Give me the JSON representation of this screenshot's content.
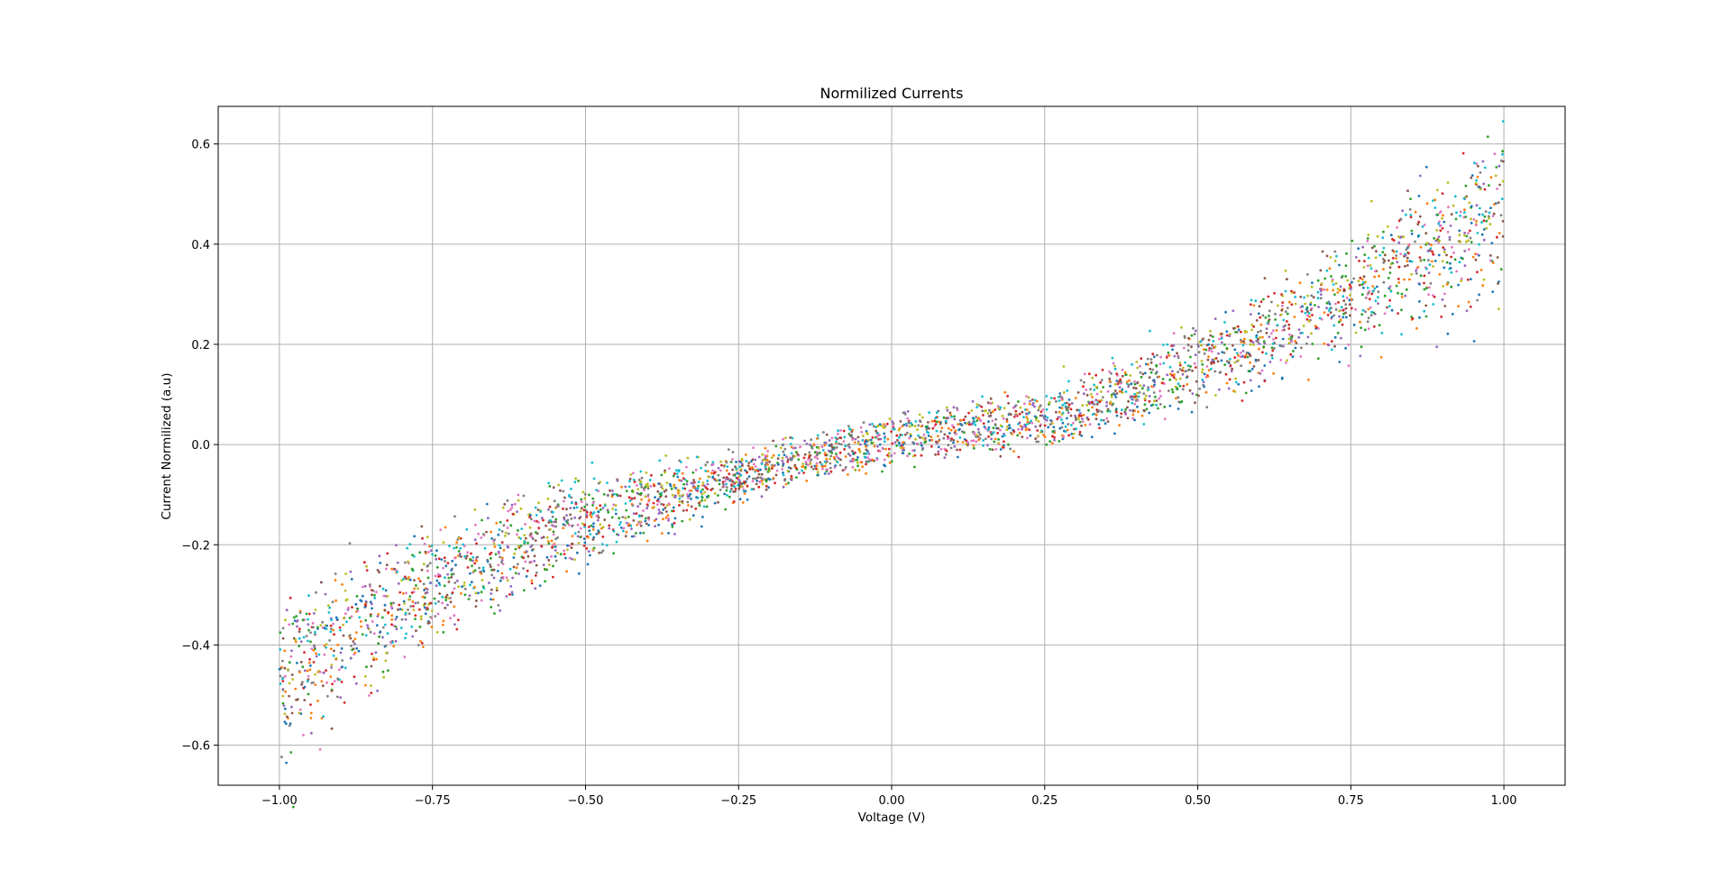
{
  "chart_data": {
    "type": "scatter",
    "title": "Normilized Currents",
    "xlabel": "Voltage (V)",
    "ylabel": "Current Normilized (a.u)",
    "xlim": [
      -1.1,
      1.1
    ],
    "ylim": [
      -0.68,
      0.675
    ],
    "grid": true,
    "legend": "none",
    "x_ticks": [
      -1.0,
      -0.75,
      -0.5,
      -0.25,
      0.0,
      0.25,
      0.5,
      0.75,
      1.0
    ],
    "x_tick_labels": [
      "−1.00",
      "−0.75",
      "−0.50",
      "−0.25",
      "0.00",
      "0.25",
      "0.50",
      "0.75",
      "1.00"
    ],
    "y_ticks": [
      -0.6,
      -0.4,
      -0.2,
      0.0,
      0.2,
      0.4,
      0.6
    ],
    "y_tick_labels": [
      "−0.6",
      "−0.4",
      "−0.2",
      "0.0",
      "0.2",
      "0.4",
      "0.6"
    ],
    "colors": [
      "#1f77b4",
      "#ff7f0e",
      "#2ca02c",
      "#d62728",
      "#9467bd",
      "#8c564b",
      "#e377c2",
      "#7f7f7f",
      "#bcbd22",
      "#17becf"
    ],
    "series_summary": {
      "count": "many",
      "description_points": [
        {
          "x": -1.0,
          "y_low": -0.55,
          "y_high": -0.38
        },
        {
          "x": -0.75,
          "y_low": -0.36,
          "y_high": -0.2
        },
        {
          "x": -0.5,
          "y_low": -0.22,
          "y_high": -0.09
        },
        {
          "x": -0.25,
          "y_low": -0.1,
          "y_high": -0.03
        },
        {
          "x": 0.0,
          "y_low": -0.03,
          "y_high": 0.05
        },
        {
          "x": 0.25,
          "y_low": 0.01,
          "y_high": 0.09
        },
        {
          "x": 0.5,
          "y_low": 0.1,
          "y_high": 0.22
        },
        {
          "x": 0.75,
          "y_low": 0.24,
          "y_high": 0.36
        },
        {
          "x": 1.0,
          "y_low": 0.35,
          "y_high": 0.58
        }
      ]
    }
  }
}
